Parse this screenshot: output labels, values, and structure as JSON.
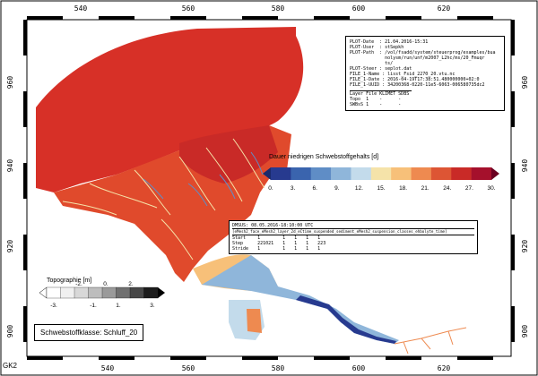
{
  "map": {
    "x_ticks": [
      "540",
      "560",
      "580",
      "600",
      "620"
    ],
    "y_ticks": [
      "960",
      "940",
      "920",
      "900"
    ],
    "corner_label": "GK2"
  },
  "plot_info": {
    "lines": [
      "PLOT-Date  : 21.04.2016-15:31",
      "PLOT-User  : stSepkh",
      "PLOT-Path  : /vol/fsadd/system/steuerprog/examples/bua",
      "             nolysm/run/unf/m2007_L2hc/ms/20_Fmuqr",
      "             ts/",
      "PLOT-Steer : seplot.dat",
      "",
      "FILE_1-Name : lisst_Fsid_2270_20.vtu.nc",
      "FILE_1-Date : 2016-04-19T17:38:51.480000000+02:0",
      "FILE_1-UUID : 34200368-0220-11e5-6063-006580735dc2"
    ],
    "table_header": [
      "Layer",
      "File",
      "KLIMET",
      "SDBS"
    ],
    "table_rows": [
      [
        "Topo",
        "1",
        "-",
        "-"
      ],
      [
        "SWBsS",
        "1",
        "-",
        "-"
      ]
    ]
  },
  "time_info": {
    "title": "DMSUS: 08.05.2016-18:10:00 UTC",
    "subtitle": "[eMesh2_face_eMesh2_layer_2d_eCtime_suspended_sediment_eMesh2_suspension_classes_ehbolyte_time]",
    "rows": [
      [
        "Start",
        "1",
        "1",
        "1",
        "1",
        "1"
      ],
      [
        "Step",
        "221021",
        "1",
        "1",
        "1",
        "223"
      ],
      [
        "Stride",
        "1",
        "1",
        "1",
        "1",
        "1"
      ]
    ]
  },
  "legend_duration": {
    "title": "Dauer niedrigen Schwebstoffgehalts [d]",
    "labels_below": [
      "0.",
      "3.",
      "6.",
      "9.",
      "12.",
      "15.",
      "18.",
      "21.",
      "24.",
      "27.",
      "30."
    ],
    "colors": [
      "#273a8f",
      "#3a64ae",
      "#5f8dc6",
      "#8fb6da",
      "#c3dbeb",
      "#f5e3a9",
      "#f7c079",
      "#ee8a50",
      "#dd5534",
      "#c92a27",
      "#a5102c"
    ]
  },
  "legend_topo": {
    "title": "Topographie [m]",
    "labels_above": [
      "-2.",
      "0.",
      "2."
    ],
    "labels_below": [
      "-3.",
      "-1.",
      "1.",
      "3."
    ],
    "colors": [
      "#ffffff",
      "#f0f0f0",
      "#d8d8d8",
      "#bdbdbd",
      "#9a9a9a",
      "#707070",
      "#474747",
      "#1c1c1c"
    ]
  },
  "class_box": {
    "label": "Schwebstoffklasse: Schluff_20"
  },
  "map_colors": {
    "land": "#ffffff",
    "sea_red": "#d73027",
    "frame": "#000000"
  }
}
